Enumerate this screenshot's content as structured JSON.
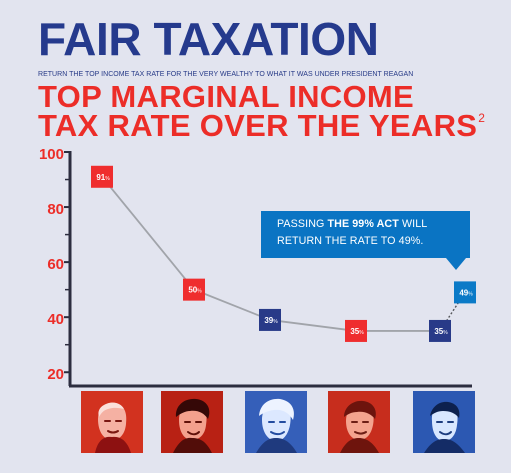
{
  "header": {
    "title": "FAIR TAXATION",
    "subtitle": "RETURN THE TOP INCOME TAX RATE FOR THE VERY WEALTHY TO WHAT IT WAS UNDER PRESIDENT REAGAN"
  },
  "chart_title": {
    "line1": "TOP MARGINAL INCOME",
    "line2": "TAX RATE OVER THE YEARS",
    "footnote": "2"
  },
  "callout": {
    "before": "PASSING ",
    "bold": "THE 99% ACT",
    "after": " WILL RETURN THE RATE TO 49%."
  },
  "colors": {
    "background": "#e2e4ef",
    "headline_blue": "#253a8d",
    "title_red": "#ec2d28",
    "axis_dark": "#2c2d3f",
    "line_gray": "#a1a4aa",
    "marker_red": "#ef2d2e",
    "marker_blue": "#283a88",
    "marker_cyan": "#0b7ac7"
  },
  "chart_data": {
    "type": "line",
    "title": "",
    "xlabel": "",
    "ylabel": "",
    "ylim": [
      15,
      100
    ],
    "y_ticks": [
      20,
      40,
      60,
      80,
      100
    ],
    "y_tick_labels": [
      "20",
      "40",
      "60",
      "80",
      "100"
    ],
    "grid": false,
    "series": [
      {
        "values": [
          91,
          50,
          39,
          35,
          35,
          49
        ],
        "value_labels": [
          "91",
          "50",
          "39",
          "35",
          "35",
          "49"
        ],
        "unit_label": "%",
        "marker_colors": [
          "#ef2d2e",
          "#ef2d2e",
          "#283a88",
          "#ef2d2e",
          "#283a88",
          "#0b7ac7"
        ],
        "line_style": [
          "solid",
          "solid",
          "solid",
          "solid",
          "dashed"
        ]
      }
    ]
  },
  "photos": [
    {
      "icon": "portrait-red-icon",
      "tint": "#d2321f"
    },
    {
      "icon": "portrait-red-icon",
      "tint": "#b82114"
    },
    {
      "icon": "portrait-blue-icon",
      "tint": "#355fb9"
    },
    {
      "icon": "portrait-red-icon",
      "tint": "#c72d1d"
    },
    {
      "icon": "portrait-blue-icon",
      "tint": "#2c58b2"
    }
  ]
}
